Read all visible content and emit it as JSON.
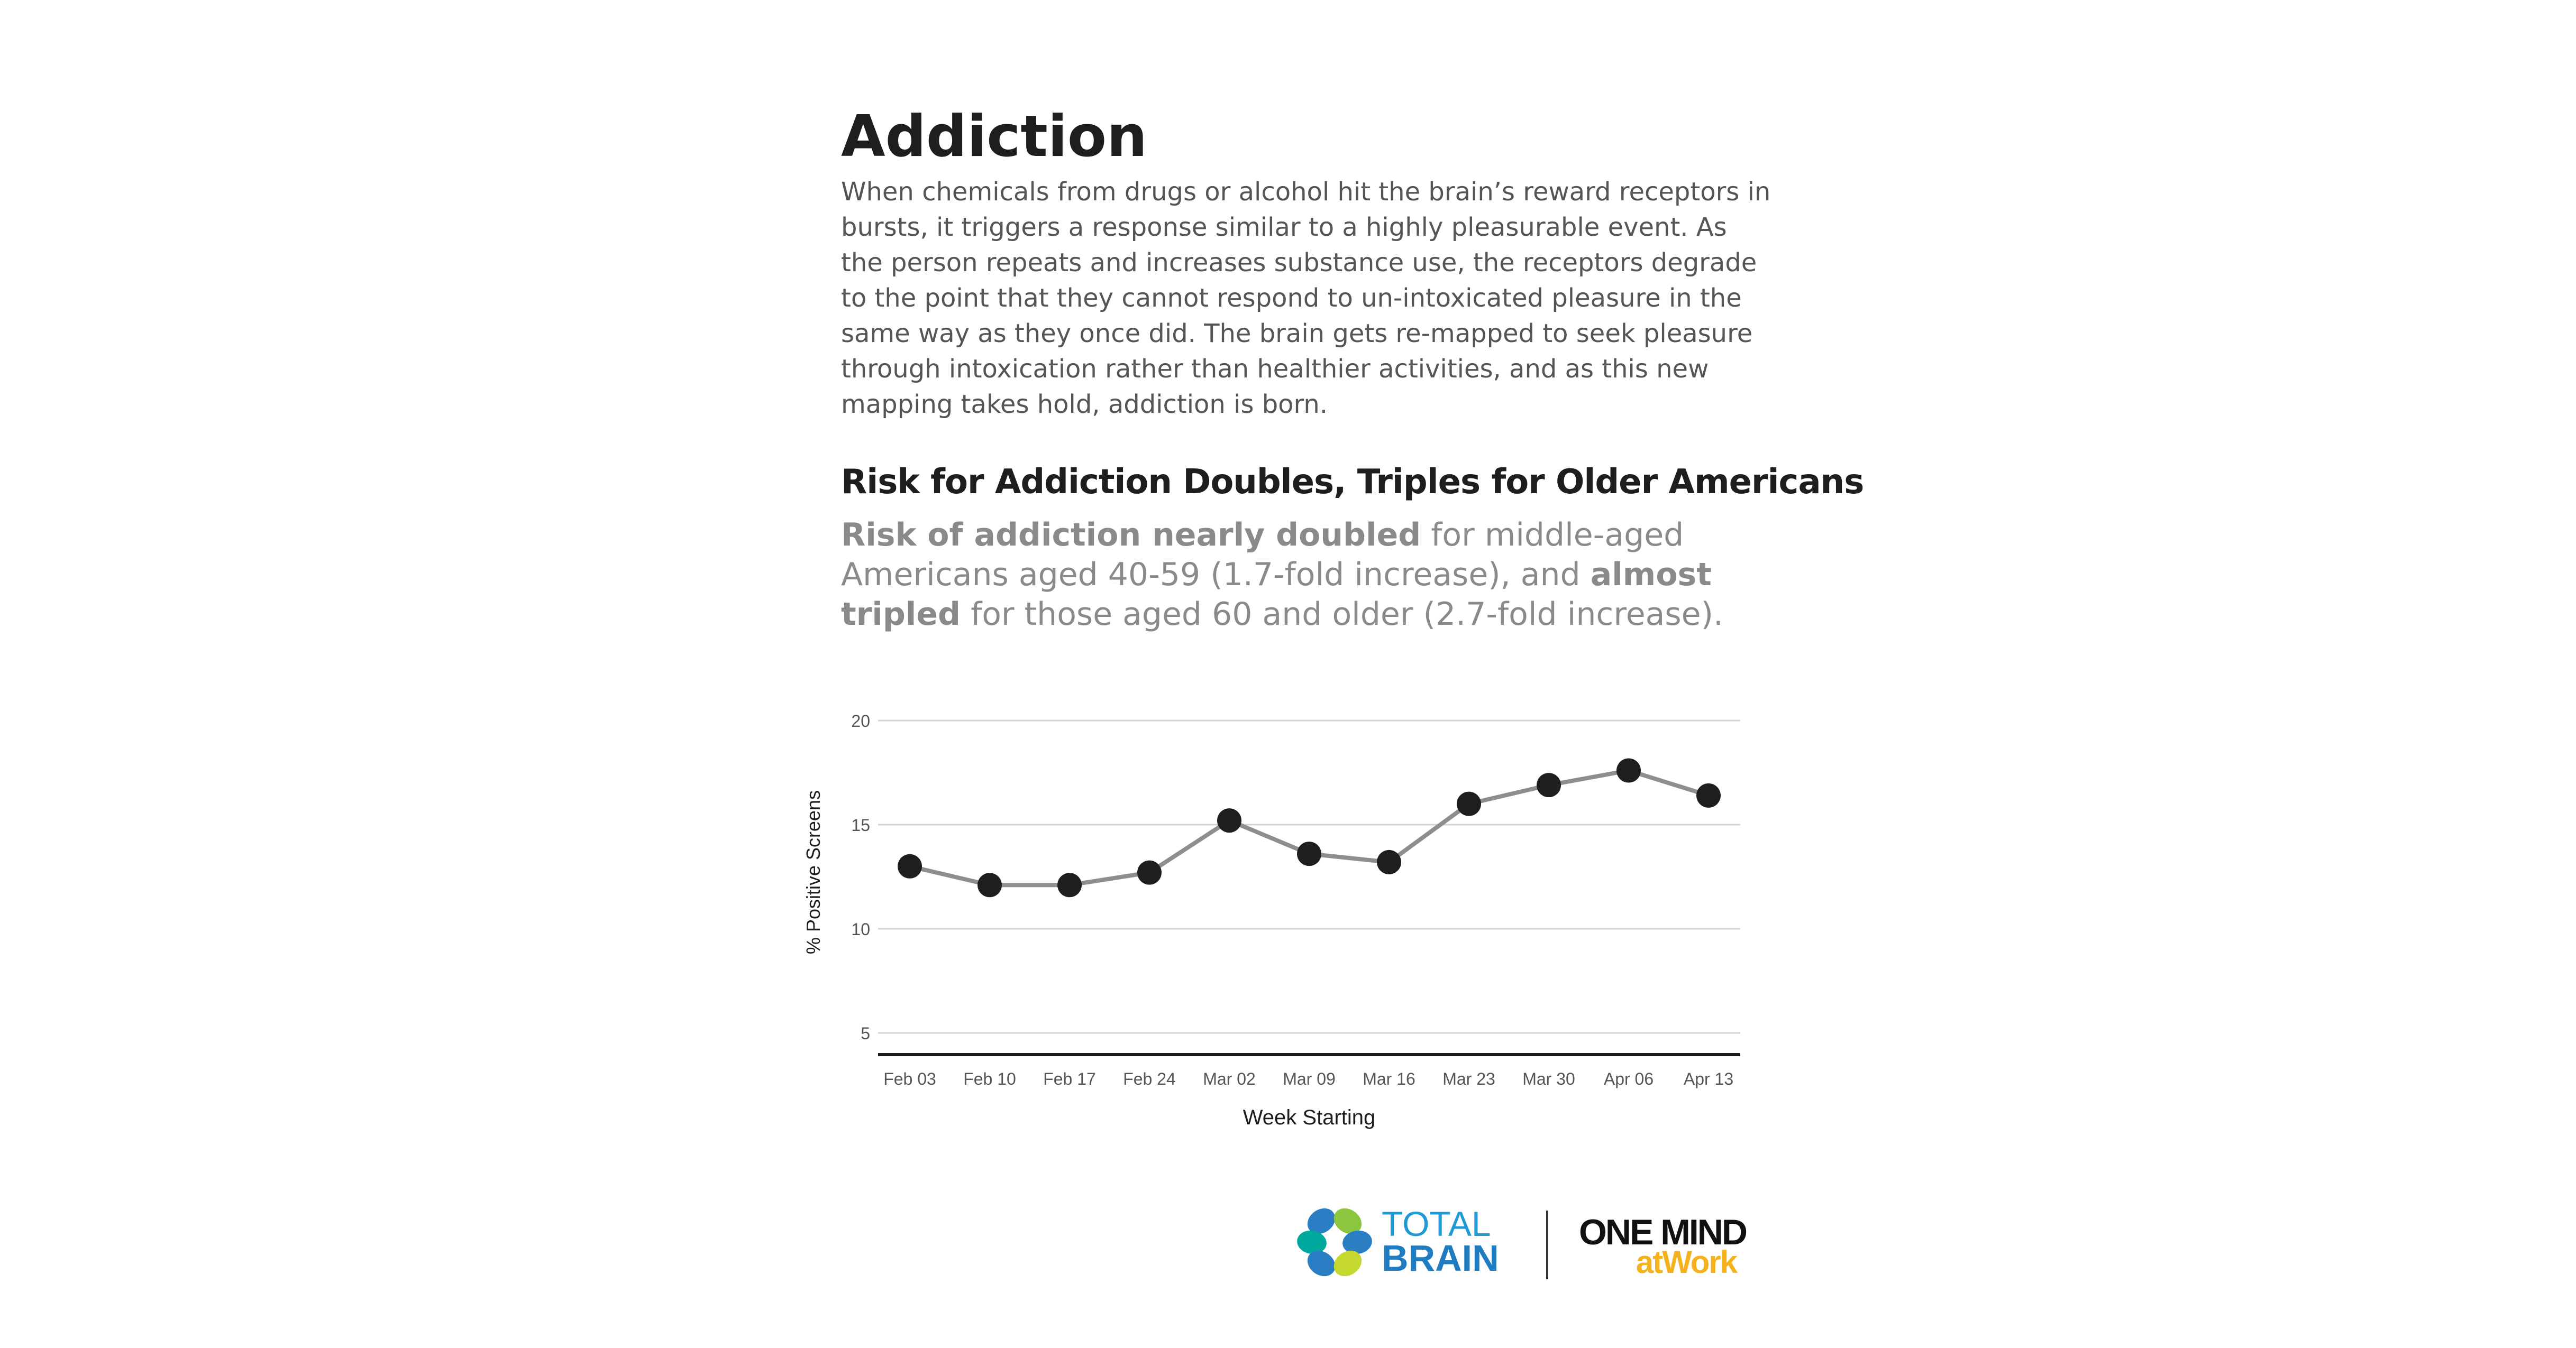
{
  "heading": "Addiction",
  "intro": "When chemicals from drugs or alcohol hit the brain’s reward receptors in bursts, it triggers a response similar to a highly pleasurable event. As the person repeats and increases substance use, the receptors degrade to the point that they cannot respond to un-intoxicated pleasure in the same way as they once did. The brain gets re-mapped to seek pleasure through intoxication rather than healthier activities, and as this new mapping takes hold, addiction is born.",
  "subheading": "Risk for Addiction Doubles, Triples for Older Americans",
  "stat": {
    "part1_bold": "Risk of addiction nearly doubled",
    "part2": " for middle-aged Americans aged 40-59 (1.7-fold increase), and ",
    "part3_bold": "almost tripled",
    "part4": " for those aged 60 and older (2.7-fold increase)."
  },
  "chart_data": {
    "type": "line",
    "title": "",
    "xlabel": "Week Starting",
    "ylabel": "% Positive Screens",
    "categories": [
      "Feb 03",
      "Feb 10",
      "Feb 17",
      "Feb 24",
      "Mar 02",
      "Mar 09",
      "Mar 16",
      "Mar 23",
      "Mar 30",
      "Apr 06",
      "Apr 13"
    ],
    "values": [
      13.0,
      12.1,
      12.1,
      12.7,
      15.2,
      13.6,
      13.2,
      16.0,
      16.9,
      17.6,
      16.4
    ],
    "yticks": [
      5,
      10,
      15,
      20
    ],
    "ylim": [
      3.5,
      20
    ],
    "grid": true,
    "colors": {
      "line": "#8e8e8e",
      "marker": "#1e1e1e",
      "grid": "#d4d4d4",
      "axis": "#1e1e1e",
      "tick_text": "#555555"
    }
  },
  "logos": {
    "left_line1": "TOTAL",
    "left_line2": "BRAIN",
    "right_line1": "ONE MIND",
    "right_line2": "atWork",
    "colors": {
      "total": "#1f9ad6",
      "brain": "#1f7cc0",
      "one_mind": "#111111",
      "at_work": "#f5b21b"
    }
  }
}
